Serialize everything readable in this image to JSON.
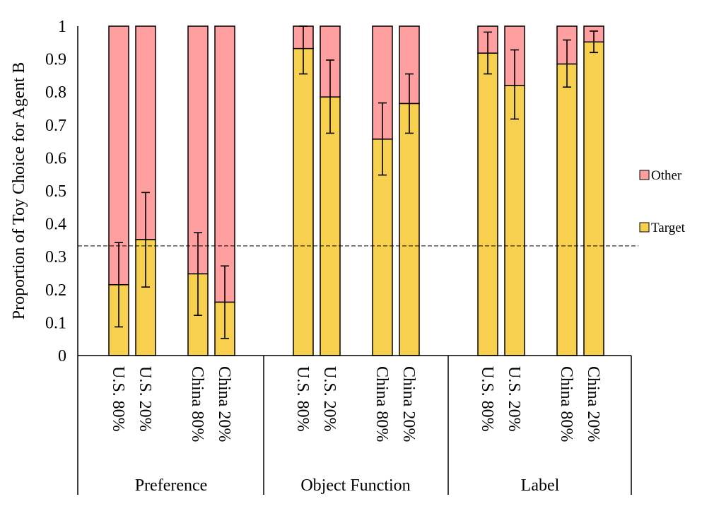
{
  "chart_data": {
    "type": "bar",
    "stacked": true,
    "ylabel": "Proportion of Toy Choice for Agent B",
    "ylim": [
      0,
      1
    ],
    "yticks": [
      "0",
      "0.1",
      "0.2",
      "0.3",
      "0.4",
      "0.5",
      "0.6",
      "0.7",
      "0.8",
      "0.9",
      "1"
    ],
    "chance_line": 0.333,
    "groups": [
      {
        "name": "Preference",
        "categories": [
          "U.S. 80%",
          "U.S. 20%",
          "China 80%",
          "China 20%"
        ],
        "target": [
          0.215,
          0.352,
          0.248,
          0.162
        ],
        "target_error_low": [
          0.087,
          0.208,
          0.122,
          0.052
        ],
        "target_error_high": [
          0.343,
          0.495,
          0.373,
          0.272
        ]
      },
      {
        "name": "Object Function",
        "categories": [
          "U.S. 80%",
          "U.S. 20%",
          "China 80%",
          "China 20%"
        ],
        "target": [
          0.932,
          0.785,
          0.657,
          0.765
        ],
        "target_error_low": [
          0.855,
          0.675,
          0.548,
          0.675
        ],
        "target_error_high": [
          1.0,
          0.897,
          0.767,
          0.855
        ]
      },
      {
        "name": "Label",
        "categories": [
          "U.S. 80%",
          "U.S. 20%",
          "China 80%",
          "China 20%"
        ],
        "target": [
          0.918,
          0.82,
          0.885,
          0.952
        ],
        "target_error_low": [
          0.855,
          0.718,
          0.815,
          0.92
        ],
        "target_error_high": [
          0.982,
          0.928,
          0.958,
          0.985
        ]
      }
    ],
    "series": [
      {
        "name": "Other",
        "color": "#ff9f9f"
      },
      {
        "name": "Target",
        "color": "#f8d04f"
      }
    ],
    "legend_position": "right"
  }
}
